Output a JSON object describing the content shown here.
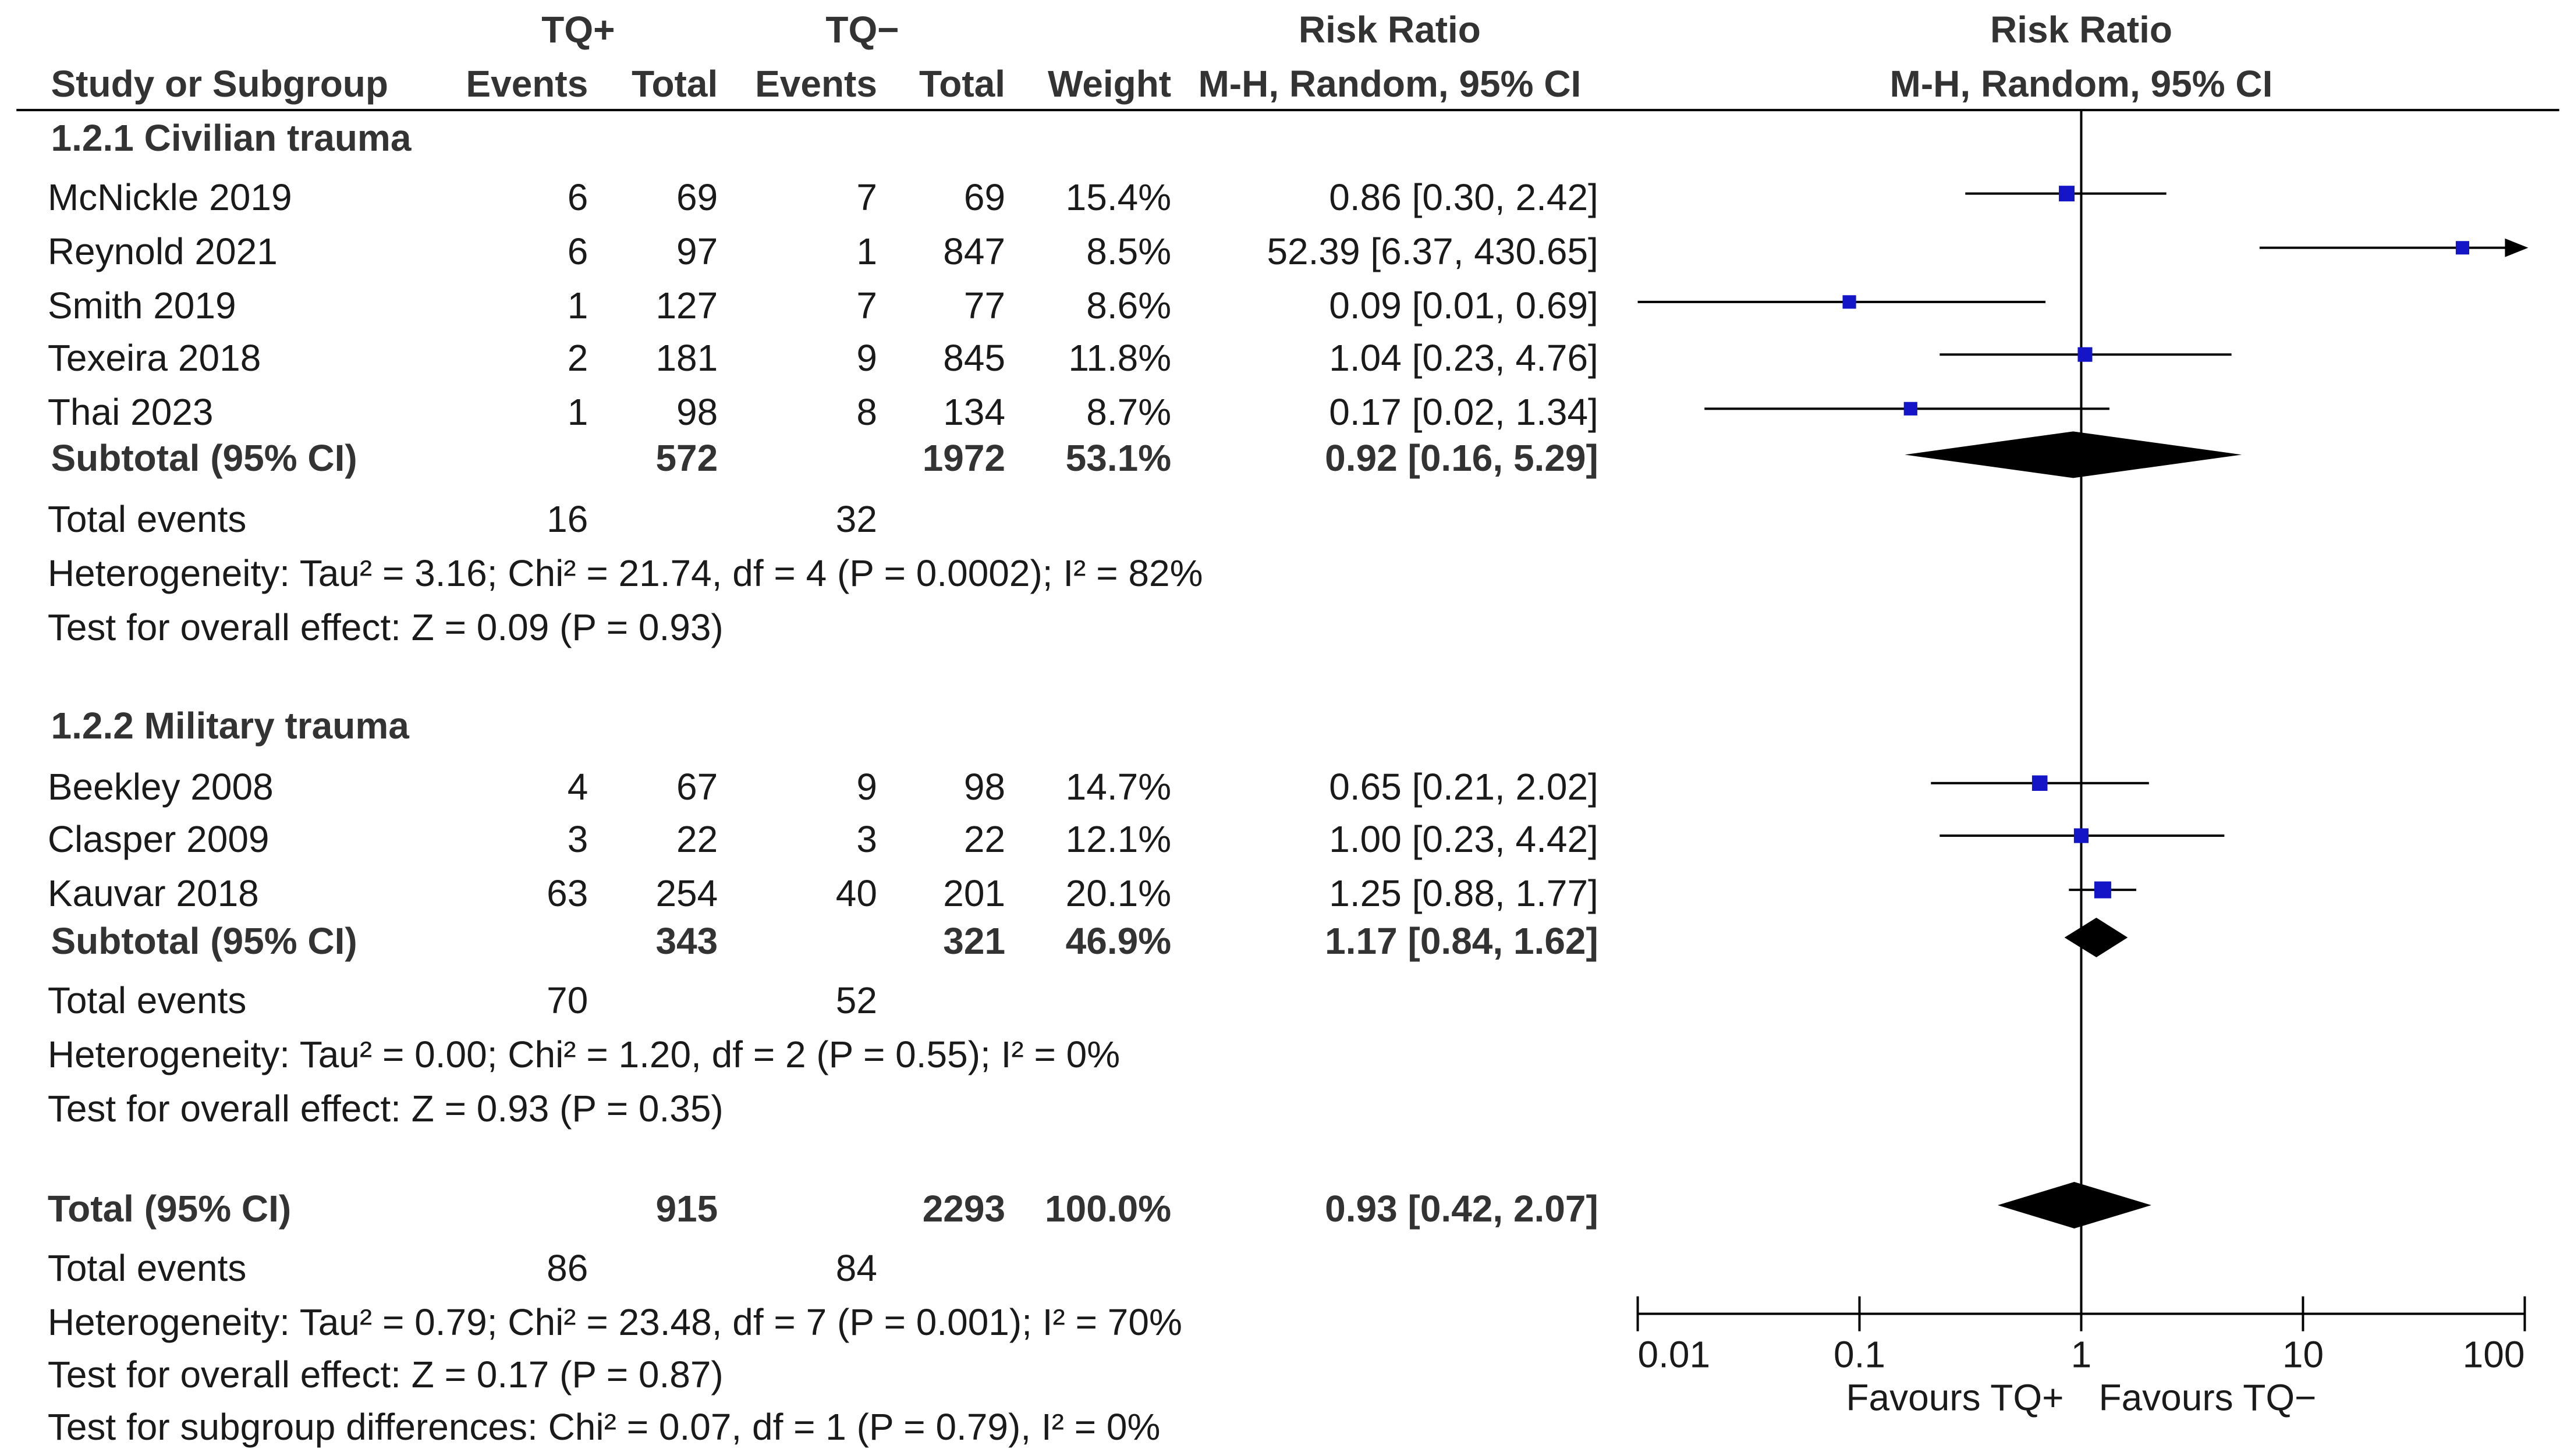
{
  "header": {
    "tq_plus": "TQ+",
    "tq_minus": "TQ−",
    "rr_title": "Risk Ratio",
    "rr_method": "M-H, Random, 95% CI",
    "plot_title": "Risk Ratio",
    "plot_method": "M-H, Random, 95% CI",
    "study_col": "Study or Subgroup",
    "events": "Events",
    "total": "Total",
    "weight": "Weight"
  },
  "subgroups": [
    {
      "title": "1.2.1 Civilian trauma",
      "studies": [
        {
          "name": "McNickle 2019",
          "e1": "6",
          "n1": "69",
          "e2": "7",
          "n2": "69",
          "weight": "15.4%",
          "ci": "0.86 [0.30, 2.42]"
        },
        {
          "name": "Reynold 2021",
          "e1": "6",
          "n1": "97",
          "e2": "1",
          "n2": "847",
          "weight": "8.5%",
          "ci": "52.39 [6.37, 430.65]"
        },
        {
          "name": "Smith 2019",
          "e1": "1",
          "n1": "127",
          "e2": "7",
          "n2": "77",
          "weight": "8.6%",
          "ci": "0.09 [0.01, 0.69]"
        },
        {
          "name": "Texeira 2018",
          "e1": "2",
          "n1": "181",
          "e2": "9",
          "n2": "845",
          "weight": "11.8%",
          "ci": "1.04 [0.23, 4.76]"
        },
        {
          "name": "Thai 2023",
          "e1": "1",
          "n1": "98",
          "e2": "8",
          "n2": "134",
          "weight": "8.7%",
          "ci": "0.17 [0.02, 1.34]"
        }
      ],
      "subtotal": {
        "label": "Subtotal (95% CI)",
        "n1": "572",
        "n2": "1972",
        "weight": "53.1%",
        "ci": "0.92 [0.16, 5.29]"
      },
      "total_events": {
        "label": "Total events",
        "e1": "16",
        "e2": "32"
      },
      "heterogeneity": "Heterogeneity: Tau² = 3.16; Chi² = 21.74, df = 4 (P = 0.0002); I² = 82%",
      "overall": "Test for overall effect: Z = 0.09 (P = 0.93)"
    },
    {
      "title": "1.2.2 Military trauma",
      "studies": [
        {
          "name": "Beekley 2008",
          "e1": "4",
          "n1": "67",
          "e2": "9",
          "n2": "98",
          "weight": "14.7%",
          "ci": "0.65 [0.21, 2.02]"
        },
        {
          "name": "Clasper 2009",
          "e1": "3",
          "n1": "22",
          "e2": "3",
          "n2": "22",
          "weight": "12.1%",
          "ci": "1.00 [0.23, 4.42]"
        },
        {
          "name": "Kauvar 2018",
          "e1": "63",
          "n1": "254",
          "e2": "40",
          "n2": "201",
          "weight": "20.1%",
          "ci": "1.25 [0.88, 1.77]"
        }
      ],
      "subtotal": {
        "label": "Subtotal (95% CI)",
        "n1": "343",
        "n2": "321",
        "weight": "46.9%",
        "ci": "1.17 [0.84, 1.62]"
      },
      "total_events": {
        "label": "Total events",
        "e1": "70",
        "e2": "52"
      },
      "heterogeneity": "Heterogeneity: Tau² = 0.00; Chi² = 1.20, df = 2 (P = 0.55); I² = 0%",
      "overall": "Test for overall effect: Z = 0.93 (P = 0.35)"
    }
  ],
  "total": {
    "label": "Total (95% CI)",
    "n1": "915",
    "n2": "2293",
    "weight": "100.0%",
    "ci": "0.93 [0.42, 2.07]",
    "total_events": {
      "label": "Total events",
      "e1": "86",
      "e2": "84"
    },
    "heterogeneity": "Heterogeneity: Tau² = 0.79; Chi² = 23.48, df = 7 (P = 0.001); I² = 70%",
    "overall": "Test for overall effect: Z = 0.17 (P = 0.87)",
    "subgroup_diff": "Test for subgroup differences: Chi² = 0.07, df = 1 (P = 0.79), I² = 0%"
  },
  "chart_data": {
    "type": "forest",
    "title": "Risk Ratio",
    "subtitle": "M-H, Random, 95% CI",
    "x_scale": "log",
    "xlim": [
      0.01,
      100
    ],
    "ticks": [
      0.01,
      0.1,
      1,
      10,
      100
    ],
    "tick_labels": [
      "0.01",
      "0.1",
      "1",
      "10",
      "100"
    ],
    "null_line": 1,
    "favours_left": "Favours TQ+",
    "favours_right": "Favours TQ−",
    "colors": {
      "point": "#1515c8",
      "diamond": "#000000",
      "line": "#000000"
    },
    "studies": [
      {
        "name": "McNickle 2019",
        "rr": 0.86,
        "lo": 0.3,
        "hi": 2.42,
        "weight": 15.4
      },
      {
        "name": "Reynold 2021",
        "rr": 52.39,
        "lo": 6.37,
        "hi": 430.65,
        "weight": 8.5
      },
      {
        "name": "Smith 2019",
        "rr": 0.09,
        "lo": 0.01,
        "hi": 0.69,
        "weight": 8.6
      },
      {
        "name": "Texeira 2018",
        "rr": 1.04,
        "lo": 0.23,
        "hi": 4.76,
        "weight": 11.8
      },
      {
        "name": "Thai 2023",
        "rr": 0.17,
        "lo": 0.02,
        "hi": 1.34,
        "weight": 8.7
      },
      {
        "name": "Beekley 2008",
        "rr": 0.65,
        "lo": 0.21,
        "hi": 2.02,
        "weight": 14.7
      },
      {
        "name": "Clasper 2009",
        "rr": 1.0,
        "lo": 0.23,
        "hi": 4.42,
        "weight": 12.1
      },
      {
        "name": "Kauvar 2018",
        "rr": 1.25,
        "lo": 0.88,
        "hi": 1.77,
        "weight": 20.1
      }
    ],
    "diamonds": [
      {
        "name": "Subtotal 1.2.1 Civilian trauma",
        "rr": 0.92,
        "lo": 0.16,
        "hi": 5.29
      },
      {
        "name": "Subtotal 1.2.2 Military trauma",
        "rr": 1.17,
        "lo": 0.84,
        "hi": 1.62
      },
      {
        "name": "Total",
        "rr": 0.93,
        "lo": 0.42,
        "hi": 2.07
      }
    ]
  }
}
